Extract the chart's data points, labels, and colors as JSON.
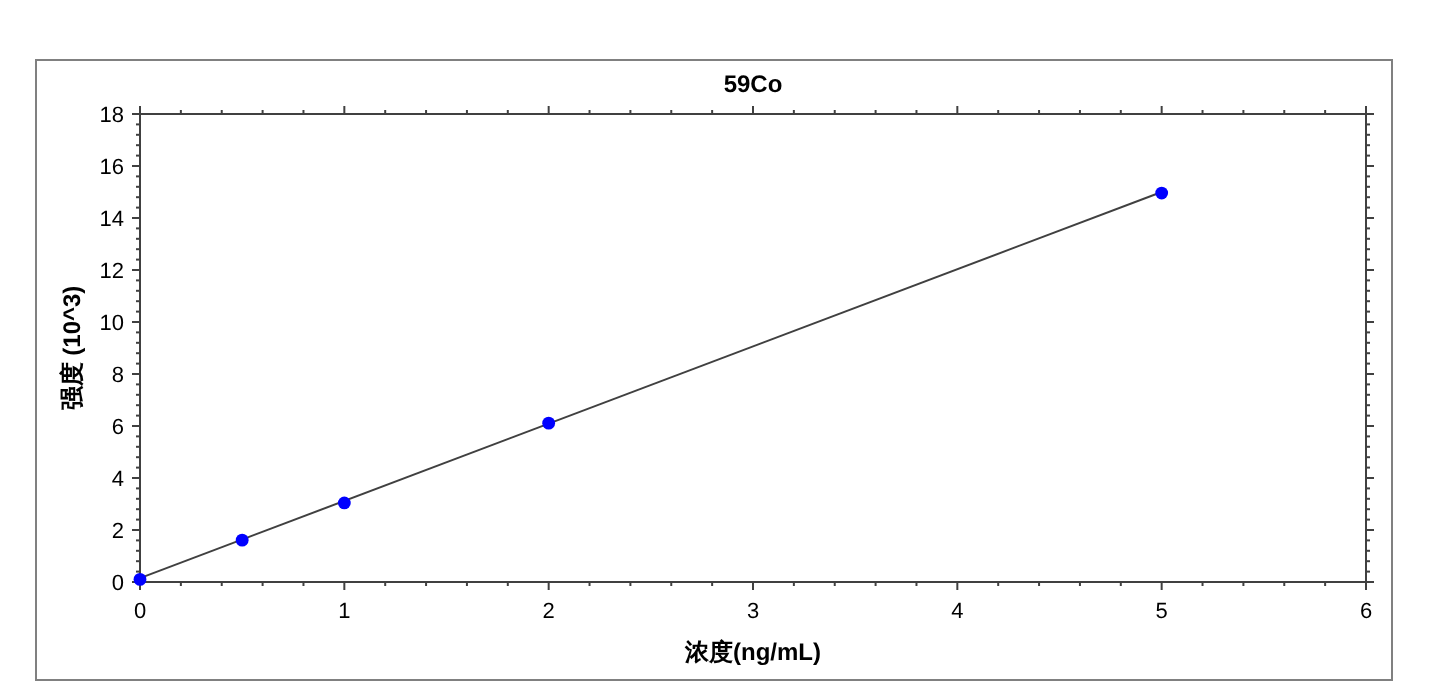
{
  "chart_data": {
    "type": "scatter",
    "title": "59Co",
    "xlabel": "浓度(ng/mL)",
    "ylabel": "强度 (10^3)",
    "xlim": [
      0,
      6
    ],
    "xticks": [
      0,
      1,
      2,
      3,
      4,
      5,
      6
    ],
    "ylim": [
      0,
      18
    ],
    "yticks": [
      0,
      2,
      4,
      6,
      8,
      10,
      12,
      14,
      16,
      18
    ],
    "grid": false,
    "marker": "circle",
    "series": [
      {
        "type": "line",
        "color": "#404040",
        "x": [
          0,
          5
        ],
        "values": [
          0.15,
          15.0
        ],
        "line_style": "solid",
        "marker": "none"
      },
      {
        "color": "#0000ff",
        "x": [
          0,
          0.5,
          1,
          2,
          5
        ],
        "values": [
          0.1,
          1.61,
          3.04,
          6.11,
          14.96
        ]
      }
    ]
  }
}
